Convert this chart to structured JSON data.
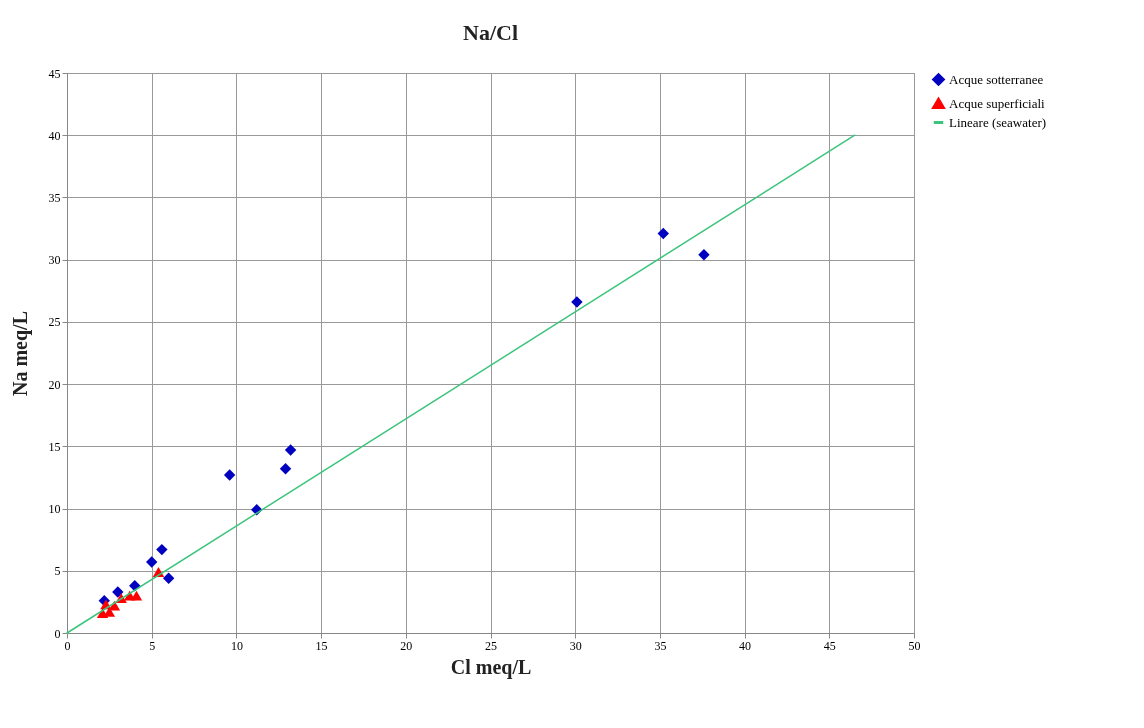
{
  "chart_data": {
    "type": "scatter",
    "title": "Na/Cl",
    "xlabel": "Cl meq/L",
    "ylabel": "Na  meq/L",
    "xlim": [
      0,
      50
    ],
    "ylim": [
      0,
      45
    ],
    "xticks": [
      0,
      5,
      10,
      15,
      20,
      25,
      30,
      35,
      40,
      45,
      50
    ],
    "yticks": [
      0,
      5,
      10,
      15,
      20,
      25,
      30,
      35,
      40,
      45
    ],
    "grid": true,
    "legend": "right",
    "series": [
      {
        "name": "Acque sotterranee",
        "color": "#0000c0",
        "marker": "diamond",
        "x": [
          2.2,
          3,
          4,
          5,
          5.6,
          6,
          9.6,
          11.2,
          12.9,
          13.2,
          30.1,
          35.2,
          37.6
        ],
        "values": [
          2.6,
          3.3,
          3.8,
          5.7,
          6.7,
          4.4,
          12.7,
          9.9,
          13.2,
          14.7,
          26.6,
          32.1,
          30.4
        ]
      },
      {
        "name": "Acque superficiali",
        "color": "#ff0000",
        "marker": "triangle",
        "x": [
          2.1,
          2.3,
          2.5,
          2.8,
          3.2,
          3.7,
          4.1,
          5.4
        ],
        "values": [
          1.6,
          2.3,
          1.7,
          2.2,
          2.8,
          3.0,
          3.0,
          4.9
        ]
      },
      {
        "name": "Lineare (seawater)",
        "type": "line",
        "color": "#3cc47c",
        "marker": "none",
        "x": [
          0,
          46.5
        ],
        "values": [
          0,
          40
        ]
      }
    ]
  }
}
